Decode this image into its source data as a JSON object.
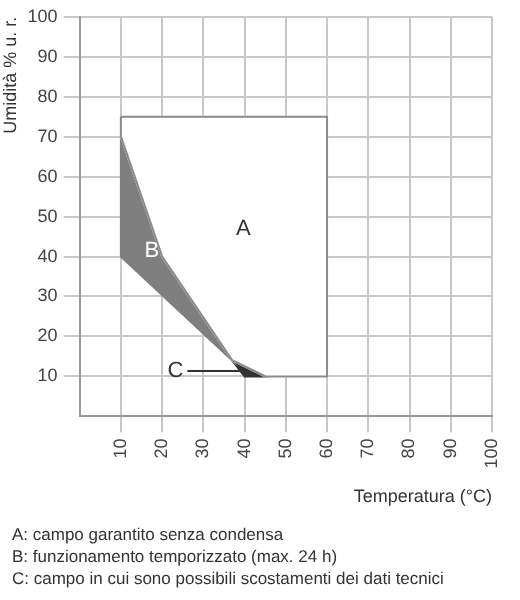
{
  "chart_data": {
    "type": "area",
    "xlabel": "Temperatura (°C)",
    "ylabel": "Umidità % u. r.",
    "xlim": [
      0,
      100
    ],
    "ylim": [
      0,
      100
    ],
    "xticks": [
      10,
      20,
      30,
      40,
      50,
      60,
      70,
      80,
      90,
      100
    ],
    "yticks": [
      10,
      20,
      30,
      40,
      50,
      60,
      70,
      80,
      90,
      100
    ],
    "grid": true,
    "series": [
      {
        "name": "A",
        "color": "#ffffff",
        "x": [
          10,
          60,
          60,
          45,
          37,
          20,
          10,
          10
        ],
        "values": [
          75,
          75,
          10,
          10,
          14,
          40,
          70,
          75
        ]
      },
      {
        "name": "B",
        "color": "#7f7f7f",
        "x": [
          10,
          20,
          37,
          10,
          10
        ],
        "values": [
          70,
          40,
          14,
          40,
          70
        ]
      },
      {
        "name": "C",
        "color": "#333333",
        "x": [
          37,
          45,
          40,
          37
        ],
        "values": [
          14,
          10,
          10,
          14
        ]
      }
    ],
    "annotations": [
      "A: campo garantito senza condensa",
      "B: funzionamento temporizzato (max. 24 h)",
      "C: campo in cui sono possibili scostamenti dei dati tecnici"
    ]
  }
}
